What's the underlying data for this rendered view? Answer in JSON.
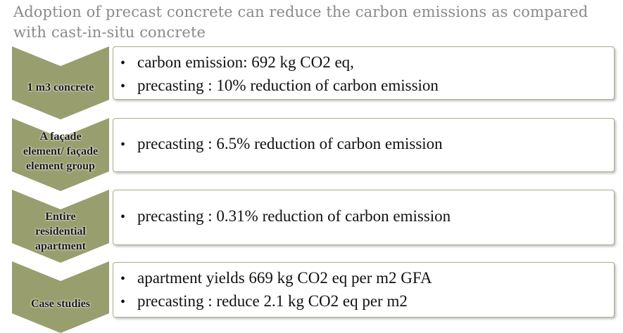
{
  "title": "Adoption of precast concrete can reduce the carbon emissions as compared with cast-in-situ concrete",
  "colors": {
    "chevron_fill": "#999e6f",
    "box_border": "#a9ad8c",
    "title_text": "#8a8a8a"
  },
  "rows": [
    {
      "label": "1 m3 concrete",
      "bullets": [
        "carbon emission: 692 kg CO2 eq,",
        "precasting : 10% reduction of carbon emission"
      ]
    },
    {
      "label": "A façade element/ façade element group",
      "bullets": [
        "precasting : 6.5% reduction of carbon emission"
      ]
    },
    {
      "label": "Entire residential apartment",
      "bullets": [
        "precasting : 0.31% reduction of carbon emission"
      ]
    },
    {
      "label": "Case studies",
      "bullets": [
        "apartment yields 669 kg CO2 eq per m2 GFA",
        "precasting : reduce 2.1 kg CO2 eq per m2"
      ]
    }
  ],
  "bullet_char": "•"
}
